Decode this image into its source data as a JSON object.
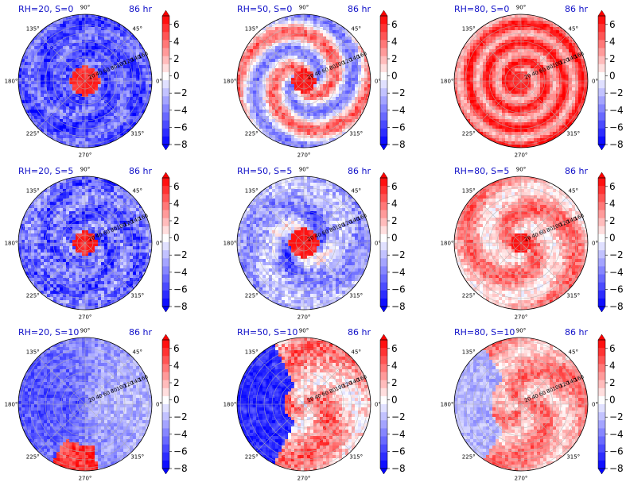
{
  "chart_data": {
    "type": "heatmap",
    "projection": "polar",
    "grid": true,
    "colormap": "bwr",
    "value_range": [
      -8,
      7
    ],
    "colorbar": {
      "ticks": [
        "6",
        "4",
        "2",
        "0",
        "−2",
        "−4",
        "−6",
        "−8"
      ],
      "extend": "both"
    },
    "angular_ticks": [
      "0°",
      "45°",
      "90°",
      "135°",
      "180°",
      "225°",
      "270°",
      "315°"
    ],
    "radial_ticks": [
      "20",
      "40",
      "60",
      "80",
      "100",
      "120",
      "140",
      "160"
    ],
    "panels": [
      {
        "title": "RH=20, S=0",
        "time": "86 hr",
        "center": "positive",
        "field": "negative"
      },
      {
        "title": "RH=50, S=0",
        "time": "86 hr",
        "center": "positive",
        "field": "mixed spiral"
      },
      {
        "title": "RH=80, S=0",
        "time": "86 hr",
        "center": "positive",
        "field": "positive"
      },
      {
        "title": "RH=20, S=5",
        "time": "86 hr",
        "center": "positive",
        "field": "negative"
      },
      {
        "title": "RH=50, S=5",
        "time": "86 hr",
        "center": "positive",
        "field": "negative with positive spiral"
      },
      {
        "title": "RH=80, S=5",
        "time": "86 hr",
        "center": "positive",
        "field": "positive"
      },
      {
        "title": "RH=20, S=10",
        "time": "86 hr",
        "center": "weak",
        "field": "negative"
      },
      {
        "title": "RH=50, S=10",
        "time": "86 hr",
        "center": "weak",
        "field": "positive with negative west"
      },
      {
        "title": "RH=80, S=10",
        "time": "86 hr",
        "center": "weak",
        "field": "positive with negative west"
      }
    ]
  }
}
